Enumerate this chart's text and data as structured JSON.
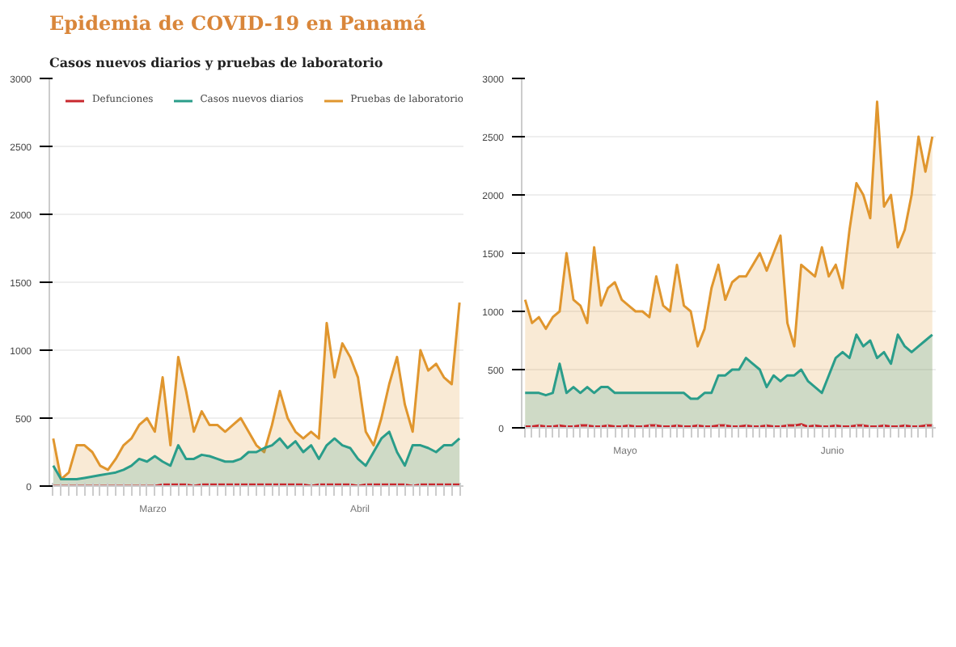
{
  "chart_data": [
    {
      "type": "area",
      "title": "Epidemia de COVID-19 en Panamá",
      "subtitle": "Casos nuevos diarios y pruebas de laboratorio",
      "legend": "top",
      "grid": "y",
      "ylim": [
        0,
        3000
      ],
      "yticks": [
        0,
        500,
        1000,
        1500,
        2000,
        2500,
        3000
      ],
      "annotations": [
        "Marzo",
        "Abril"
      ],
      "categories": [
        null,
        null,
        null,
        null,
        null,
        null,
        null,
        null,
        null,
        null,
        null,
        null,
        null,
        null,
        null,
        null,
        null,
        null,
        null,
        null,
        null,
        null,
        null,
        null,
        null,
        null,
        null,
        null,
        null,
        null,
        null,
        null,
        null,
        null,
        null,
        null,
        null,
        null,
        null,
        null,
        null,
        null,
        null,
        null,
        null,
        null,
        null,
        null,
        null,
        null,
        null,
        null,
        null
      ],
      "series": [
        {
          "name": "Defunciones",
          "type": "line",
          "color": "#c8282e",
          "values": [
            0,
            0,
            0,
            0,
            0,
            0,
            0,
            0,
            0,
            0,
            0,
            0,
            0,
            0,
            10,
            10,
            10,
            10,
            0,
            10,
            10,
            10,
            10,
            10,
            10,
            10,
            10,
            10,
            10,
            10,
            10,
            10,
            10,
            0,
            10,
            10,
            10,
            10,
            10,
            0,
            10,
            10,
            10,
            10,
            10,
            10,
            0,
            10,
            10,
            10,
            10,
            10,
            10
          ]
        },
        {
          "name": "Casos nuevos diarios",
          "color": "#2a9d8a",
          "values": [
            150,
            50,
            50,
            50,
            60,
            70,
            80,
            90,
            100,
            120,
            150,
            200,
            180,
            220,
            180,
            150,
            300,
            200,
            200,
            230,
            220,
            200,
            180,
            180,
            200,
            250,
            250,
            280,
            300,
            350,
            280,
            330,
            250,
            300,
            200,
            300,
            350,
            300,
            280,
            200,
            150,
            250,
            350,
            400,
            250,
            150,
            300,
            300,
            280,
            250,
            300,
            300,
            350
          ]
        },
        {
          "name": "Pruebas de laboratorio",
          "color": "#e0962e",
          "values": [
            350,
            50,
            100,
            300,
            300,
            250,
            150,
            120,
            200,
            300,
            350,
            450,
            500,
            400,
            800,
            300,
            950,
            700,
            400,
            550,
            450,
            450,
            400,
            450,
            500,
            400,
            300,
            250,
            450,
            700,
            500,
            400,
            350,
            400,
            350,
            1200,
            800,
            1050,
            950,
            800,
            400,
            300,
            500,
            750,
            950,
            600,
            400,
            1000,
            850,
            900,
            800,
            750,
            1350
          ]
        }
      ]
    },
    {
      "type": "area",
      "grid": "y",
      "ylim": [
        0,
        3000
      ],
      "yticks": [
        0,
        500,
        1000,
        1500,
        2000,
        2500,
        3000
      ],
      "annotations": [
        "Mayo",
        "Junio"
      ],
      "categories": [
        null,
        null,
        null,
        null,
        null,
        null,
        null,
        null,
        null,
        null,
        null,
        null,
        null,
        null,
        null,
        null,
        null,
        null,
        null,
        null,
        null,
        null,
        null,
        null,
        null,
        null,
        null,
        null,
        null,
        null,
        null,
        null,
        null,
        null,
        null,
        null,
        null,
        null,
        null,
        null,
        null,
        null,
        null,
        null,
        null,
        null,
        null,
        null,
        null,
        null,
        null,
        null,
        null,
        null,
        null,
        null,
        null,
        null,
        null,
        null
      ],
      "series": [
        {
          "type": "line",
          "color": "#c8282e",
          "values": [
            10,
            10,
            20,
            10,
            10,
            20,
            10,
            10,
            20,
            20,
            10,
            10,
            20,
            10,
            10,
            20,
            10,
            10,
            20,
            20,
            10,
            10,
            20,
            10,
            10,
            20,
            10,
            10,
            20,
            20,
            10,
            10,
            20,
            10,
            10,
            20,
            10,
            10,
            20,
            20,
            30,
            10,
            20,
            10,
            10,
            20,
            10,
            10,
            20,
            20,
            10,
            10,
            20,
            10,
            10,
            20,
            10,
            10,
            20,
            20
          ]
        },
        {
          "color": "#2a9d8a",
          "values": [
            300,
            300,
            300,
            280,
            300,
            550,
            300,
            350,
            300,
            350,
            300,
            350,
            350,
            300,
            300,
            300,
            300,
            300,
            300,
            300,
            300,
            300,
            300,
            300,
            250,
            250,
            300,
            300,
            450,
            450,
            500,
            500,
            600,
            550,
            500,
            350,
            450,
            400,
            450,
            450,
            500,
            400,
            350,
            300,
            450,
            600,
            650,
            600,
            800,
            700,
            750,
            600,
            650,
            550,
            800,
            700,
            650,
            700,
            750,
            800
          ]
        },
        {
          "color": "#e0962e",
          "values": [
            1100,
            900,
            950,
            850,
            950,
            1000,
            1500,
            1100,
            1050,
            900,
            1550,
            1050,
            1200,
            1250,
            1100,
            1050,
            1000,
            1000,
            950,
            1300,
            1050,
            1000,
            1400,
            1050,
            1000,
            700,
            850,
            1200,
            1400,
            1100,
            1250,
            1300,
            1300,
            1400,
            1500,
            1350,
            1500,
            1650,
            900,
            700,
            1400,
            1350,
            1300,
            1550,
            1300,
            1400,
            1200,
            1700,
            2100,
            2000,
            1800,
            2800,
            1900,
            2000,
            1550,
            1700,
            2000,
            2500,
            2200,
            2500
          ]
        }
      ]
    }
  ]
}
